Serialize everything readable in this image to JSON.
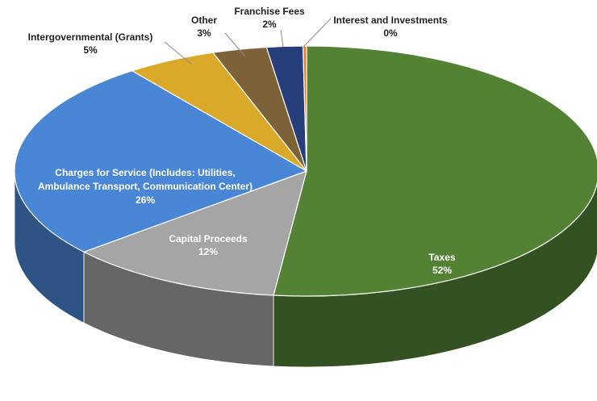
{
  "chart_data": {
    "type": "pie",
    "title": "",
    "slices": [
      {
        "key": "taxes",
        "name": "Taxes",
        "value": 52,
        "value_label": "52%",
        "color": "#548235",
        "label_lines": [
          "Taxes"
        ]
      },
      {
        "key": "capital",
        "name": "Capital Proceeds",
        "value": 12,
        "value_label": "12%",
        "color": "#a5a5a5",
        "label_lines": [
          "Capital Proceeds"
        ]
      },
      {
        "key": "charges",
        "name": "Charges for Service (Includes: Utilities, Ambulance Transport, Communication Center)",
        "value": 26,
        "value_label": "26%",
        "color": "#4a86d6",
        "label_lines": [
          "Charges for Service (Includes: Utilities,",
          "Ambulance Transport, Communication Center)"
        ]
      },
      {
        "key": "grants",
        "name": "Intergovernmental (Grants)",
        "value": 5,
        "value_label": "5%",
        "color": "#dba929",
        "label_lines": [
          "Intergovernmental (Grants)"
        ]
      },
      {
        "key": "other",
        "name": "Other",
        "value": 3,
        "value_label": "3%",
        "color": "#7d6239",
        "label_lines": [
          "Other"
        ]
      },
      {
        "key": "franchise",
        "name": "Franchise Fees",
        "value": 2,
        "value_label": "2%",
        "color": "#263f7a",
        "label_lines": [
          "Franchise Fees"
        ]
      },
      {
        "key": "interest",
        "name": "Interest and Investments",
        "value": 0,
        "value_label": "0%",
        "color": "#f07a2a",
        "label_lines": [
          "Interest and Investments"
        ]
      }
    ],
    "legend": "none",
    "style": "3d-pie"
  }
}
